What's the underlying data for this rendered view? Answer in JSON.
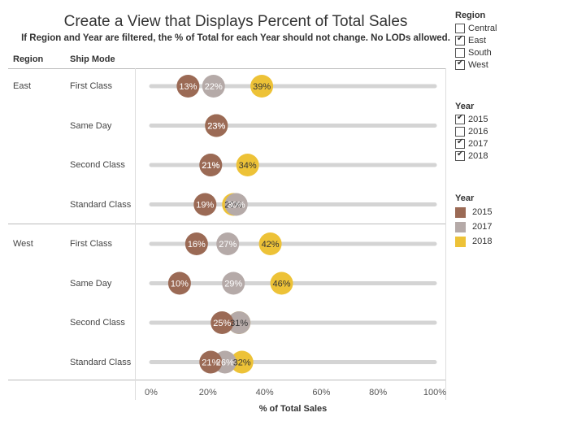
{
  "title": "Create a View that Displays Percent of Total Sales",
  "subtitle": "If Region and Year are filtered, the % of Total for each Year should not change. No LODs allowed.",
  "headers": {
    "region": "Region",
    "ship_mode": "Ship Mode"
  },
  "filters": {
    "region": {
      "title": "Region",
      "options": [
        {
          "label": "Central",
          "checked": false
        },
        {
          "label": "East",
          "checked": true
        },
        {
          "label": "South",
          "checked": false
        },
        {
          "label": "West",
          "checked": true
        }
      ]
    },
    "year": {
      "title": "Year",
      "options": [
        {
          "label": "2015",
          "checked": true
        },
        {
          "label": "2016",
          "checked": false
        },
        {
          "label": "2017",
          "checked": true
        },
        {
          "label": "2018",
          "checked": true
        }
      ]
    }
  },
  "legend": {
    "title": "Year",
    "items": [
      {
        "label": "2015",
        "color": "#9b6a55"
      },
      {
        "label": "2017",
        "color": "#b5aaa8"
      },
      {
        "label": "2018",
        "color": "#edc237"
      }
    ]
  },
  "chart_data": {
    "type": "scatter",
    "xlabel": "% of Total Sales",
    "xlim": [
      0,
      100
    ],
    "x_ticks": [
      "0%",
      "20%",
      "40%",
      "60%",
      "80%",
      "100%"
    ],
    "regions": [
      "East",
      "West"
    ],
    "rows": [
      {
        "region": "East",
        "mode": "First Class",
        "values": {
          "2015": 13,
          "2017": 22,
          "2018": 39
        },
        "labels": {
          "2015": "13%",
          "2017": "22%",
          "2018": "39%"
        }
      },
      {
        "region": "East",
        "mode": "Same Day",
        "values": {
          "2015": 23,
          "2017": 23,
          "2018": 23
        },
        "labels": {
          "2015": "23%",
          "2017": "23%",
          "2018": ""
        }
      },
      {
        "region": "East",
        "mode": "Second Class",
        "values": {
          "2015": 21,
          "2017": 21,
          "2018": 34
        },
        "labels": {
          "2015": "21%",
          "2017": "21%",
          "2018": "34%"
        }
      },
      {
        "region": "East",
        "mode": "Standard Class",
        "values": {
          "2015": 19,
          "2017": 30,
          "2018": 29
        },
        "labels": {
          "2015": "19%",
          "2017": "30%",
          "2018": "29%"
        }
      },
      {
        "region": "West",
        "mode": "First Class",
        "values": {
          "2015": 16,
          "2017": 27,
          "2018": 42
        },
        "labels": {
          "2015": "16%",
          "2017": "27%",
          "2018": "42%"
        }
      },
      {
        "region": "West",
        "mode": "Same Day",
        "values": {
          "2015": 10,
          "2017": 29,
          "2018": 46
        },
        "labels": {
          "2015": "10%",
          "2017": "29%",
          "2018": "46%"
        }
      },
      {
        "region": "West",
        "mode": "Second Class",
        "values": {
          "2015": 25,
          "2017": 31,
          "2018": 31
        },
        "labels": {
          "2015": "25%",
          "2017": "",
          "2018": "31%"
        }
      },
      {
        "region": "West",
        "mode": "Standard Class",
        "values": {
          "2015": 21,
          "2017": 26,
          "2018": 32
        },
        "labels": {
          "2015": "21%",
          "2017": "26%",
          "2018": "32%"
        }
      }
    ],
    "series": [
      {
        "name": "2015",
        "color": "#9b6a55"
      },
      {
        "name": "2017",
        "color": "#b5aaa8"
      },
      {
        "name": "2018",
        "color": "#edc237"
      }
    ]
  }
}
